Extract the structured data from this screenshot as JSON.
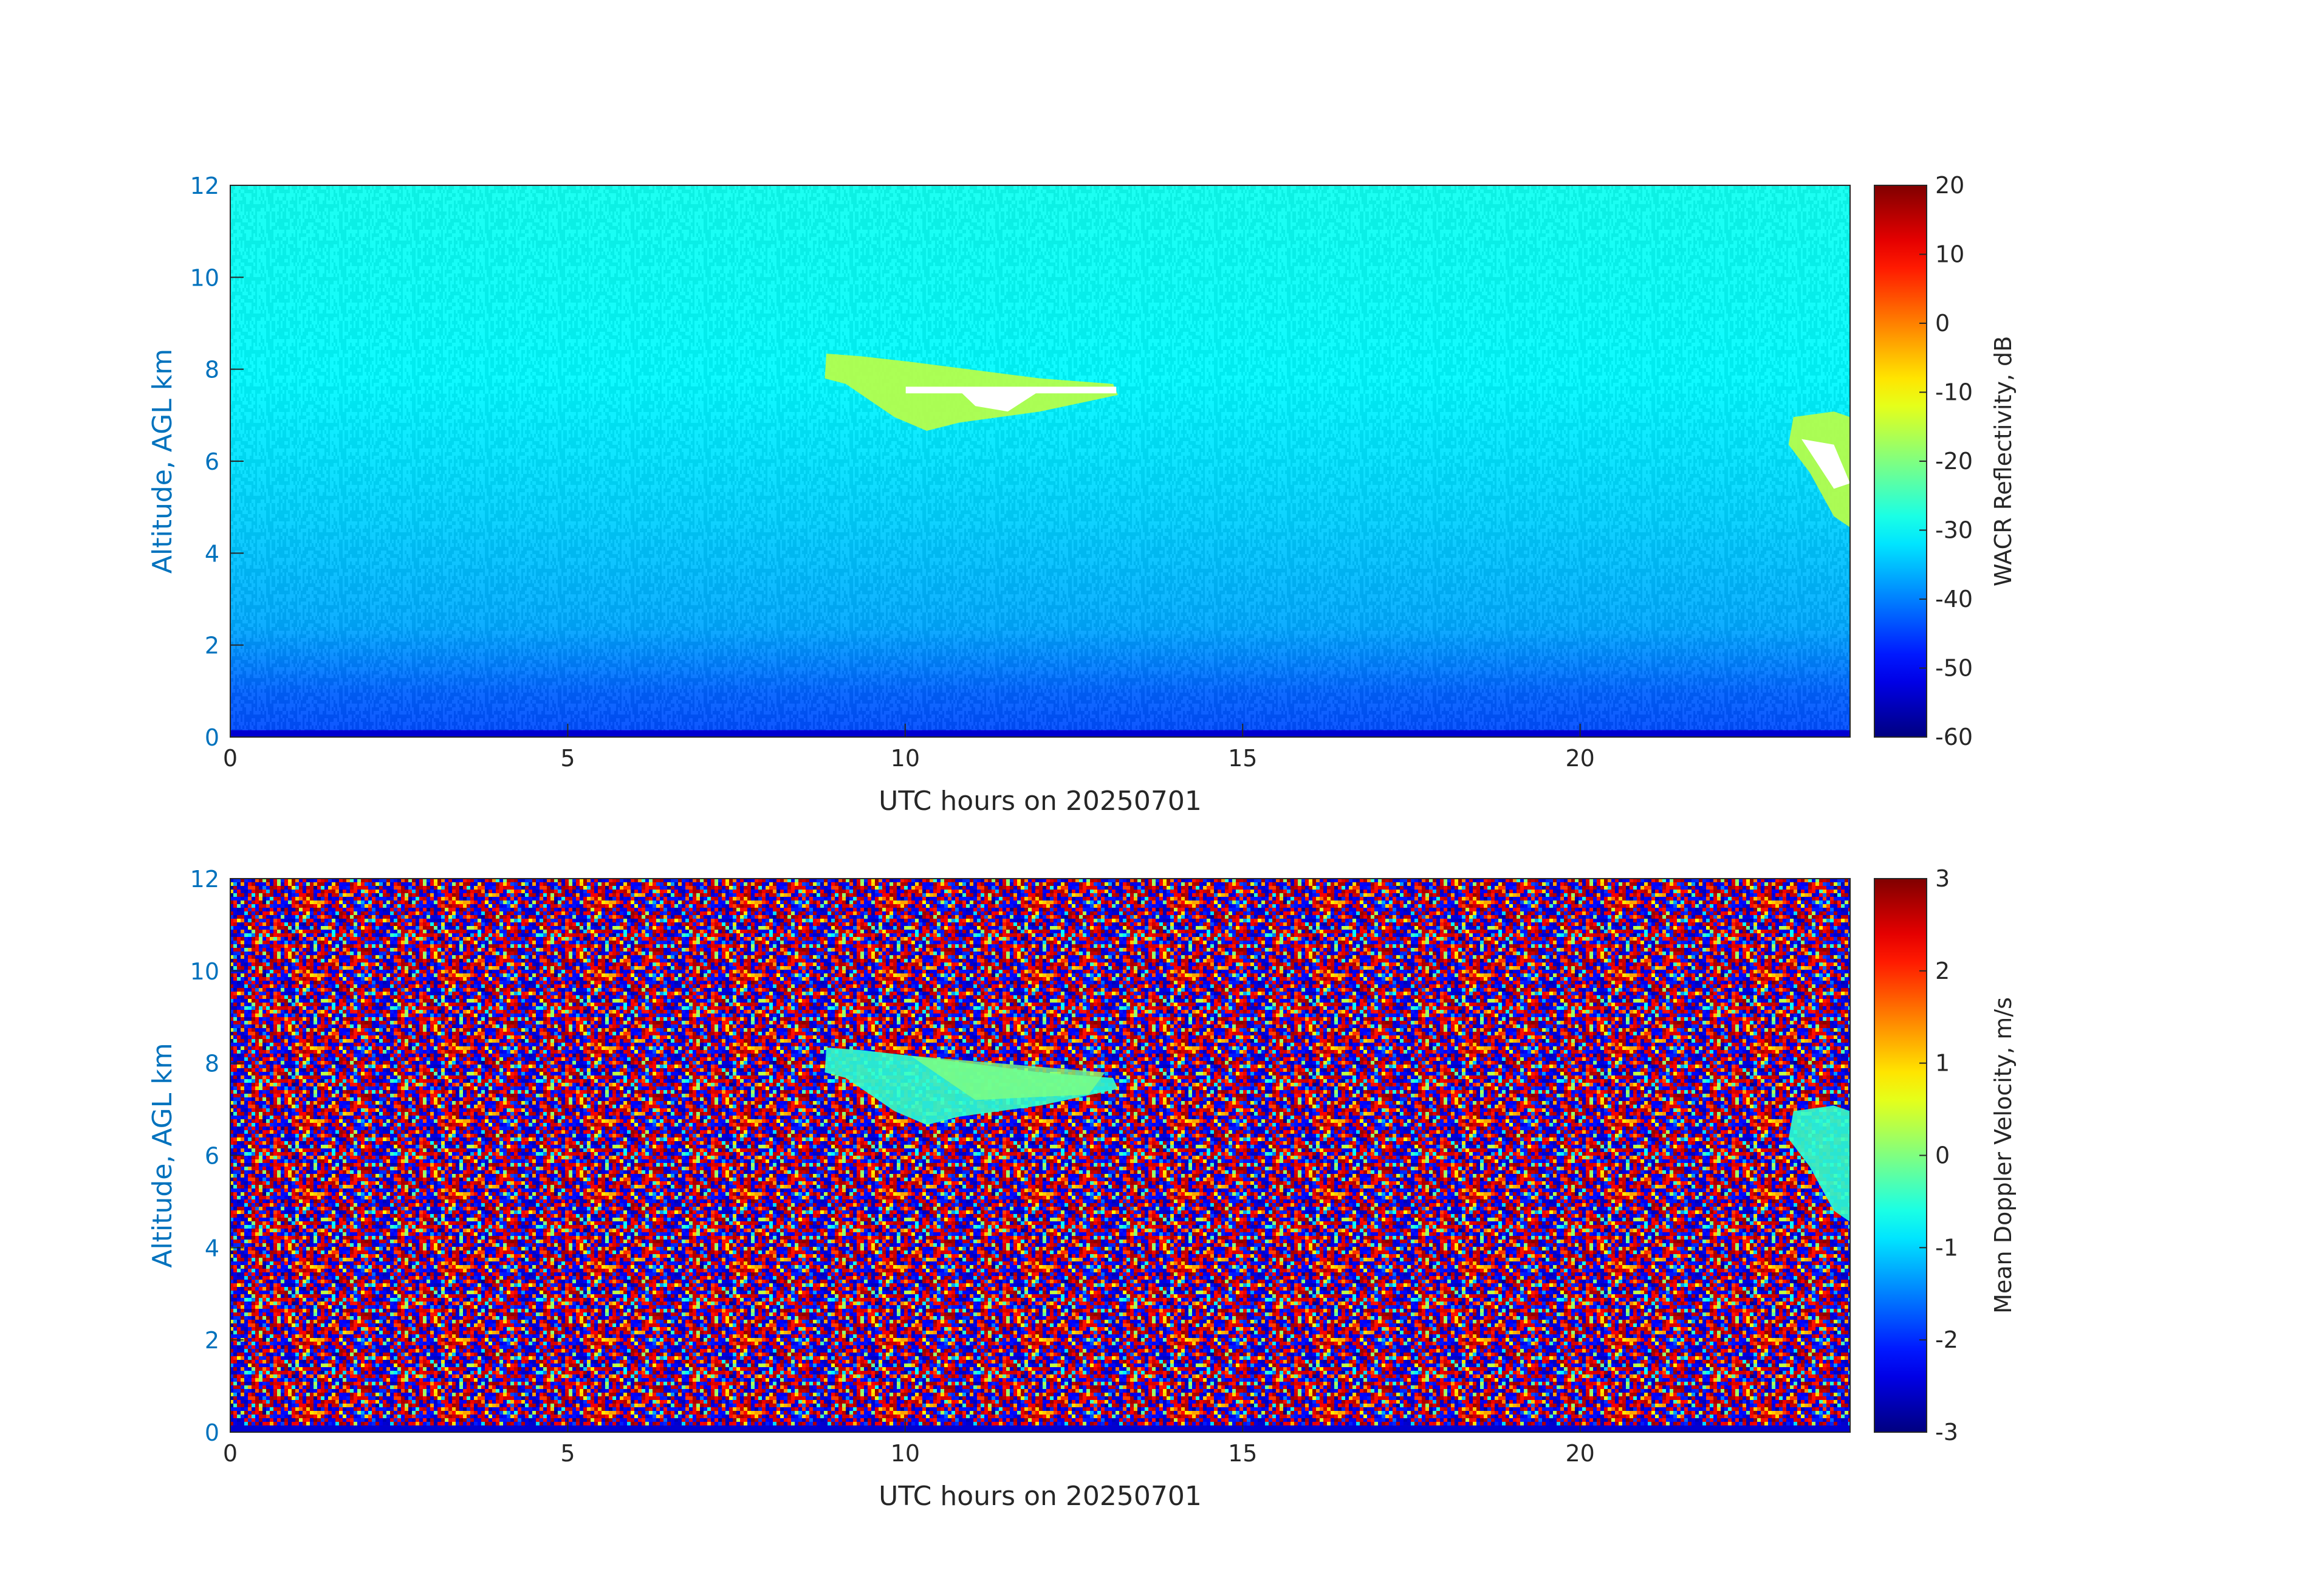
{
  "chart_data": [
    {
      "type": "heatmap",
      "xlabel": "UTC hours on 20250701",
      "ylabel": "Altitude, AGL km",
      "xlim": [
        0,
        24
      ],
      "xticks": [
        0,
        5,
        10,
        15,
        20
      ],
      "ylim": [
        0,
        12
      ],
      "yticks": [
        0,
        2,
        4,
        6,
        8,
        10,
        12
      ],
      "colormap": "jet",
      "colorbar_label": "WACR Reflectivity, dB",
      "clim": [
        -60,
        20
      ],
      "cticks": [
        -60,
        -50,
        -40,
        -30,
        -20,
        -10,
        0,
        10,
        20
      ]
    },
    {
      "type": "heatmap",
      "xlabel": "UTC hours on 20250701",
      "ylabel": "Altitude, AGL km",
      "xlim": [
        0,
        24
      ],
      "xticks": [
        0,
        5,
        10,
        15,
        20
      ],
      "ylim": [
        0,
        12
      ],
      "yticks": [
        0,
        2,
        4,
        6,
        8,
        10,
        12
      ],
      "colormap": "jet",
      "colorbar_label": "Mean Doppler Velocity, m/s",
      "clim": [
        -3,
        3
      ],
      "cticks": [
        -3,
        -2,
        -1,
        0,
        1,
        2,
        3
      ]
    }
  ]
}
